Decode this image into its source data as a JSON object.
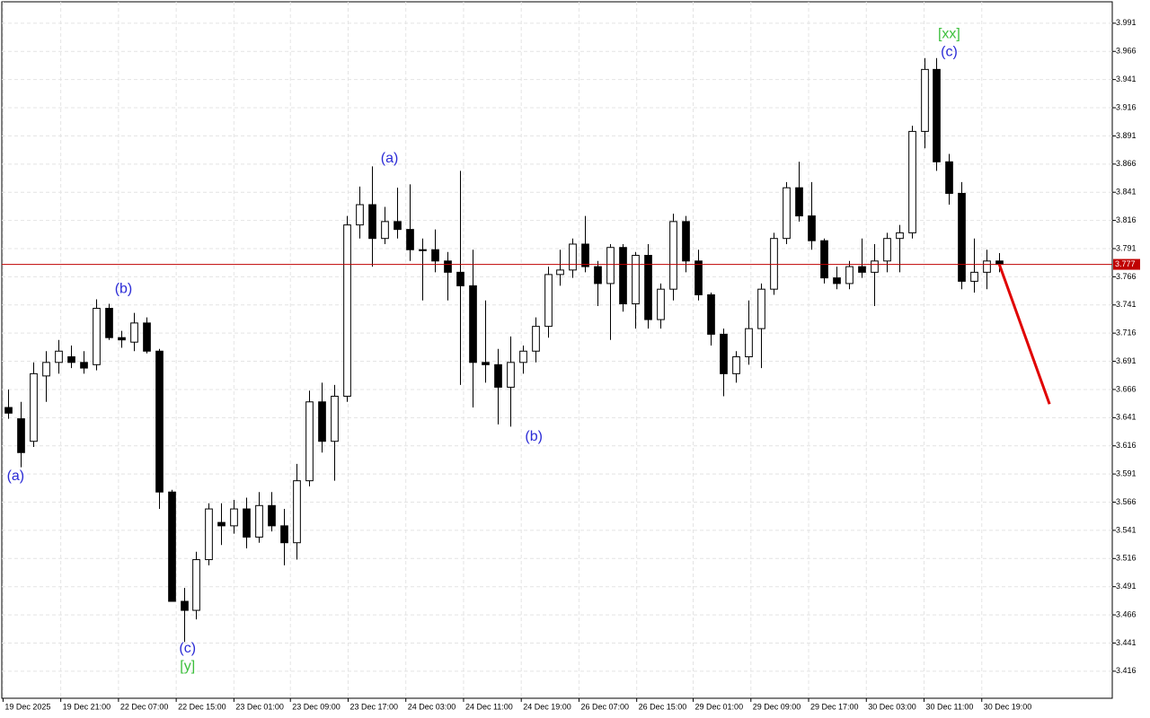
{
  "chart_data": {
    "type": "candlestick",
    "ohlc": [
      [
        3.65,
        3.666,
        3.64,
        3.645
      ],
      [
        3.64,
        3.655,
        3.597,
        3.61
      ],
      [
        3.62,
        3.69,
        3.615,
        3.68
      ],
      [
        3.678,
        3.7,
        3.655,
        3.69
      ],
      [
        3.69,
        3.71,
        3.68,
        3.7
      ],
      [
        3.695,
        3.705,
        3.685,
        3.69
      ],
      [
        3.69,
        3.7,
        3.68,
        3.685
      ],
      [
        3.688,
        3.746,
        3.683,
        3.738
      ],
      [
        3.738,
        3.742,
        3.71,
        3.712
      ],
      [
        3.712,
        3.718,
        3.703,
        3.71
      ],
      [
        3.708,
        3.734,
        3.7,
        3.725
      ],
      [
        3.725,
        3.73,
        3.698,
        3.7
      ],
      [
        3.7,
        3.702,
        3.56,
        3.575
      ],
      [
        3.575,
        3.577,
        3.48,
        3.478
      ],
      [
        3.478,
        3.49,
        3.442,
        3.47
      ],
      [
        3.47,
        3.522,
        3.462,
        3.515
      ],
      [
        3.515,
        3.565,
        3.51,
        3.56
      ],
      [
        3.548,
        3.565,
        3.528,
        3.545
      ],
      [
        3.545,
        3.568,
        3.538,
        3.56
      ],
      [
        3.56,
        3.57,
        3.525,
        3.535
      ],
      [
        3.535,
        3.575,
        3.53,
        3.563
      ],
      [
        3.563,
        3.575,
        3.54,
        3.545
      ],
      [
        3.545,
        3.56,
        3.51,
        3.53
      ],
      [
        3.53,
        3.6,
        3.515,
        3.585
      ],
      [
        3.585,
        3.665,
        3.58,
        3.655
      ],
      [
        3.655,
        3.672,
        3.61,
        3.62
      ],
      [
        3.62,
        3.67,
        3.585,
        3.66
      ],
      [
        3.66,
        3.82,
        3.655,
        3.812
      ],
      [
        3.812,
        3.846,
        3.8,
        3.83
      ],
      [
        3.83,
        3.864,
        3.775,
        3.8
      ],
      [
        3.8,
        3.828,
        3.795,
        3.815
      ],
      [
        3.815,
        3.845,
        3.8,
        3.808
      ],
      [
        3.808,
        3.848,
        3.78,
        3.79
      ],
      [
        3.79,
        3.8,
        3.745,
        3.79
      ],
      [
        3.79,
        3.808,
        3.77,
        3.78
      ],
      [
        3.78,
        3.788,
        3.745,
        3.77
      ],
      [
        3.77,
        3.86,
        3.67,
        3.758
      ],
      [
        3.758,
        3.79,
        3.65,
        3.69
      ],
      [
        3.69,
        3.745,
        3.672,
        3.688
      ],
      [
        3.688,
        3.702,
        3.635,
        3.668
      ],
      [
        3.668,
        3.713,
        3.633,
        3.69
      ],
      [
        3.69,
        3.705,
        3.68,
        3.7
      ],
      [
        3.7,
        3.73,
        3.69,
        3.722
      ],
      [
        3.722,
        3.775,
        3.712,
        3.768
      ],
      [
        3.768,
        3.79,
        3.758,
        3.772
      ],
      [
        3.772,
        3.8,
        3.765,
        3.795
      ],
      [
        3.795,
        3.82,
        3.77,
        3.775
      ],
      [
        3.775,
        3.78,
        3.74,
        3.76
      ],
      [
        3.76,
        3.795,
        3.71,
        3.792
      ],
      [
        3.792,
        3.795,
        3.735,
        3.742
      ],
      [
        3.742,
        3.788,
        3.72,
        3.785
      ],
      [
        3.785,
        3.795,
        3.72,
        3.728
      ],
      [
        3.728,
        3.76,
        3.72,
        3.755
      ],
      [
        3.755,
        3.822,
        3.745,
        3.815
      ],
      [
        3.815,
        3.82,
        3.77,
        3.78
      ],
      [
        3.78,
        3.79,
        3.745,
        3.75
      ],
      [
        3.75,
        3.752,
        3.705,
        3.715
      ],
      [
        3.715,
        3.72,
        3.66,
        3.68
      ],
      [
        3.68,
        3.7,
        3.672,
        3.695
      ],
      [
        3.695,
        3.745,
        3.688,
        3.72
      ],
      [
        3.72,
        3.76,
        3.685,
        3.755
      ],
      [
        3.755,
        3.805,
        3.75,
        3.8
      ],
      [
        3.8,
        3.85,
        3.795,
        3.845
      ],
      [
        3.845,
        3.868,
        3.815,
        3.82
      ],
      [
        3.82,
        3.85,
        3.79,
        3.798
      ],
      [
        3.798,
        3.8,
        3.76,
        3.765
      ],
      [
        3.765,
        3.775,
        3.755,
        3.76
      ],
      [
        3.76,
        3.78,
        3.755,
        3.775
      ],
      [
        3.775,
        3.8,
        3.765,
        3.77
      ],
      [
        3.77,
        3.795,
        3.74,
        3.78
      ],
      [
        3.78,
        3.805,
        3.77,
        3.8
      ],
      [
        3.8,
        3.812,
        3.77,
        3.805
      ],
      [
        3.805,
        3.9,
        3.8,
        3.895
      ],
      [
        3.895,
        3.96,
        3.88,
        3.95
      ],
      [
        3.95,
        3.96,
        3.86,
        3.868
      ],
      [
        3.868,
        3.875,
        3.83,
        3.84
      ],
      [
        3.84,
        3.85,
        3.755,
        3.762
      ],
      [
        3.762,
        3.8,
        3.752,
        3.77
      ],
      [
        3.77,
        3.79,
        3.755,
        3.78
      ],
      [
        3.78,
        3.787,
        3.77,
        3.777
      ]
    ],
    "up_color": "#ffffff",
    "down_color": "#000000",
    "xlim": [
      -0.5,
      88
    ],
    "xticks": [
      {
        "value": -0.4,
        "label": "19 Dec 2025"
      },
      {
        "value": 4.2,
        "label": "19 Dec 21:00"
      },
      {
        "value": 8.8,
        "label": "22 Dec 07:00"
      },
      {
        "value": 13.4,
        "label": "22 Dec 15:00"
      },
      {
        "value": 18.0,
        "label": "23 Dec 01:00"
      },
      {
        "value": 22.5,
        "label": "23 Dec 09:00"
      },
      {
        "value": 27.1,
        "label": "23 Dec 17:00"
      },
      {
        "value": 31.7,
        "label": "24 Dec 03:00"
      },
      {
        "value": 36.3,
        "label": "24 Dec 11:00"
      },
      {
        "value": 40.9,
        "label": "24 Dec 19:00"
      },
      {
        "value": 45.5,
        "label": "26 Dec 07:00"
      },
      {
        "value": 50.1,
        "label": "26 Dec 15:00"
      },
      {
        "value": 54.6,
        "label": "29 Dec 01:00"
      },
      {
        "value": 59.2,
        "label": "29 Dec 09:00"
      },
      {
        "value": 63.8,
        "label": "29 Dec 17:00"
      },
      {
        "value": 68.4,
        "label": "30 Dec 03:00"
      },
      {
        "value": 73.0,
        "label": "30 Dec 11:00"
      },
      {
        "value": 77.6,
        "label": "30 Dec 19:00"
      }
    ],
    "ylim": [
      3.392,
      4.01
    ],
    "yticks": [
      3.416,
      3.441,
      3.466,
      3.491,
      3.516,
      3.541,
      3.566,
      3.591,
      3.616,
      3.641,
      3.666,
      3.691,
      3.716,
      3.741,
      3.766,
      3.791,
      3.816,
      3.841,
      3.866,
      3.891,
      3.916,
      3.941,
      3.966,
      3.991
    ],
    "grid": true,
    "current_price": 3.777,
    "current_price_color": "#c00000",
    "forecast": {
      "x": [
        79,
        83
      ],
      "y": [
        3.777,
        3.653
      ],
      "color": "#e00000"
    },
    "annotations": [
      {
        "text": "(a)",
        "x": 0.6,
        "y": 3.589,
        "color": "#2b2bd6"
      },
      {
        "text": "(b)",
        "x": 9.2,
        "y": 3.755,
        "color": "#2b2bd6"
      },
      {
        "text": "(c)",
        "x": 14.3,
        "y": 3.436,
        "color": "#2b2bd6"
      },
      {
        "text": "[y]",
        "x": 14.3,
        "y": 3.42,
        "color": "#3cbf3c"
      },
      {
        "text": "(a)",
        "x": 30.4,
        "y": 3.871,
        "color": "#2b2bd6"
      },
      {
        "text": "(b)",
        "x": 41.9,
        "y": 3.624,
        "color": "#2b2bd6"
      },
      {
        "text": "[xx]",
        "x": 75.0,
        "y": 3.981,
        "color": "#3cbf3c"
      },
      {
        "text": "(c)",
        "x": 75.0,
        "y": 3.965,
        "color": "#2b2bd6"
      }
    ]
  }
}
